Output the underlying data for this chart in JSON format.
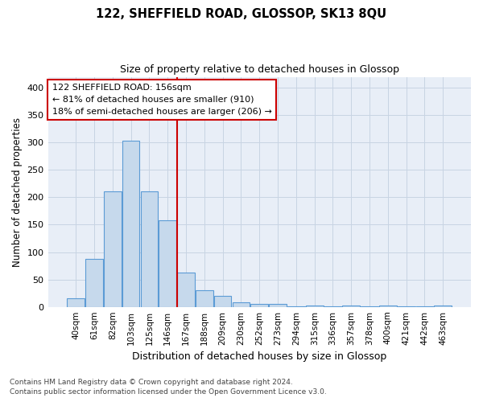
{
  "title": "122, SHEFFIELD ROAD, GLOSSOP, SK13 8QU",
  "subtitle": "Size of property relative to detached houses in Glossop",
  "xlabel": "Distribution of detached houses by size in Glossop",
  "ylabel": "Number of detached properties",
  "bar_labels": [
    "40sqm",
    "61sqm",
    "82sqm",
    "103sqm",
    "125sqm",
    "146sqm",
    "167sqm",
    "188sqm",
    "209sqm",
    "230sqm",
    "252sqm",
    "273sqm",
    "294sqm",
    "315sqm",
    "336sqm",
    "357sqm",
    "378sqm",
    "400sqm",
    "421sqm",
    "442sqm",
    "463sqm"
  ],
  "bar_values": [
    16,
    88,
    211,
    303,
    211,
    158,
    63,
    30,
    20,
    9,
    5,
    5,
    1,
    3,
    1,
    2,
    1,
    3,
    1,
    1,
    2
  ],
  "bar_color": "#c6d9ec",
  "bar_edge_color": "#5b9bd5",
  "vline_x_index": 5,
  "vline_color": "#cc0000",
  "annotation_text": "122 SHEFFIELD ROAD: 156sqm\n← 81% of detached houses are smaller (910)\n18% of semi-detached houses are larger (206) →",
  "annotation_box_color": "#ffffff",
  "annotation_box_edge": "#cc0000",
  "ylim": [
    0,
    420
  ],
  "yticks": [
    0,
    50,
    100,
    150,
    200,
    250,
    300,
    350,
    400
  ],
  "grid_color": "#c8d4e3",
  "footer_line1": "Contains HM Land Registry data © Crown copyright and database right 2024.",
  "footer_line2": "Contains public sector information licensed under the Open Government Licence v3.0.",
  "bg_color": "#ffffff",
  "plot_bg_color": "#e8eef7"
}
